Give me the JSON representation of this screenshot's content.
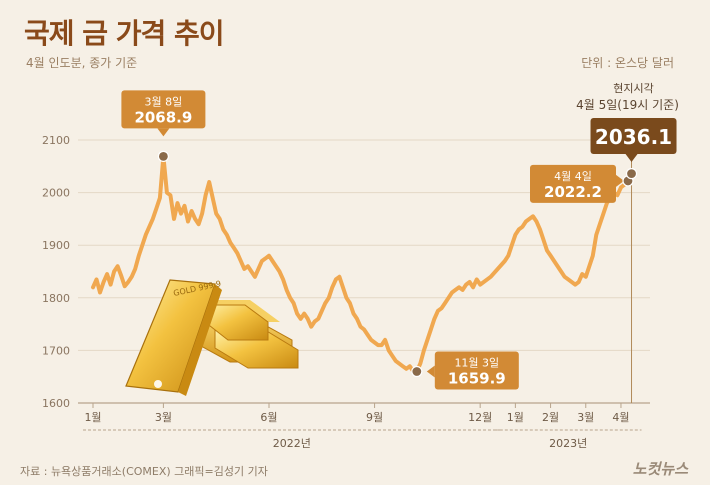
{
  "title": "국제 금 가격 추이",
  "subtitle": "4월 인도분, 종가 기준",
  "unit": "단위 : 온스당 달러",
  "source": "자료 : 뉴욕상품거래소(COMEX)   그래픽=김성기 기자",
  "logo": "노컷뉴스",
  "colors": {
    "line": "#f0a850",
    "callout": "#d28a35",
    "callout_dark": "#7a4a1c",
    "text_brown": "#8a4a1a"
  },
  "chart_data": {
    "type": "line",
    "title": "국제 금 가격 추이",
    "ylabel": "단위 : 온스당 달러",
    "ylim": [
      1600,
      2150
    ],
    "yticks": [
      1600,
      1700,
      1800,
      1900,
      2000,
      2100
    ],
    "x_range": [
      0,
      15.3
    ],
    "xticks": [
      {
        "x": 0,
        "label": "1월"
      },
      {
        "x": 2,
        "label": "3월"
      },
      {
        "x": 5,
        "label": "6월"
      },
      {
        "x": 8,
        "label": "9월"
      },
      {
        "x": 11,
        "label": "12월"
      },
      {
        "x": 12,
        "label": "1월"
      },
      {
        "x": 13,
        "label": "2월"
      },
      {
        "x": 14,
        "label": "3월"
      },
      {
        "x": 15,
        "label": "4월"
      }
    ],
    "year_groups": [
      {
        "label": "2022년",
        "from": 0,
        "to": 11.3
      },
      {
        "label": "2023년",
        "from": 11.7,
        "to": 15.3
      }
    ],
    "series": [
      {
        "name": "금 가격",
        "points": [
          [
            0,
            1820
          ],
          [
            0.1,
            1835
          ],
          [
            0.2,
            1810
          ],
          [
            0.3,
            1830
          ],
          [
            0.4,
            1845
          ],
          [
            0.5,
            1825
          ],
          [
            0.6,
            1850
          ],
          [
            0.7,
            1860
          ],
          [
            0.8,
            1842
          ],
          [
            0.9,
            1822
          ],
          [
            1.0,
            1830
          ],
          [
            1.1,
            1840
          ],
          [
            1.2,
            1855
          ],
          [
            1.3,
            1880
          ],
          [
            1.4,
            1900
          ],
          [
            1.5,
            1920
          ],
          [
            1.6,
            1935
          ],
          [
            1.7,
            1950
          ],
          [
            1.8,
            1970
          ],
          [
            1.9,
            1990
          ],
          [
            2.0,
            2068.9
          ],
          [
            2.1,
            2000
          ],
          [
            2.2,
            1995
          ],
          [
            2.3,
            1950
          ],
          [
            2.4,
            1980
          ],
          [
            2.5,
            1960
          ],
          [
            2.6,
            1975
          ],
          [
            2.7,
            1945
          ],
          [
            2.8,
            1965
          ],
          [
            2.9,
            1950
          ],
          [
            3.0,
            1940
          ],
          [
            3.1,
            1960
          ],
          [
            3.2,
            1995
          ],
          [
            3.3,
            2020
          ],
          [
            3.4,
            1990
          ],
          [
            3.5,
            1960
          ],
          [
            3.6,
            1950
          ],
          [
            3.7,
            1930
          ],
          [
            3.8,
            1920
          ],
          [
            3.9,
            1905
          ],
          [
            4.0,
            1895
          ],
          [
            4.1,
            1885
          ],
          [
            4.2,
            1870
          ],
          [
            4.3,
            1855
          ],
          [
            4.4,
            1860
          ],
          [
            4.5,
            1850
          ],
          [
            4.6,
            1840
          ],
          [
            4.7,
            1855
          ],
          [
            4.8,
            1870
          ],
          [
            4.9,
            1875
          ],
          [
            5.0,
            1880
          ],
          [
            5.1,
            1870
          ],
          [
            5.2,
            1860
          ],
          [
            5.3,
            1850
          ],
          [
            5.4,
            1835
          ],
          [
            5.5,
            1815
          ],
          [
            5.6,
            1800
          ],
          [
            5.7,
            1790
          ],
          [
            5.8,
            1770
          ],
          [
            5.9,
            1760
          ],
          [
            6.0,
            1770
          ],
          [
            6.1,
            1760
          ],
          [
            6.2,
            1745
          ],
          [
            6.3,
            1755
          ],
          [
            6.4,
            1760
          ],
          [
            6.5,
            1775
          ],
          [
            6.6,
            1790
          ],
          [
            6.7,
            1800
          ],
          [
            6.8,
            1820
          ],
          [
            6.9,
            1835
          ],
          [
            7.0,
            1840
          ],
          [
            7.1,
            1820
          ],
          [
            7.2,
            1800
          ],
          [
            7.3,
            1790
          ],
          [
            7.4,
            1770
          ],
          [
            7.5,
            1760
          ],
          [
            7.6,
            1745
          ],
          [
            7.7,
            1740
          ],
          [
            7.8,
            1730
          ],
          [
            7.9,
            1720
          ],
          [
            8.0,
            1715
          ],
          [
            8.1,
            1710
          ],
          [
            8.2,
            1710
          ],
          [
            8.3,
            1720
          ],
          [
            8.4,
            1700
          ],
          [
            8.5,
            1690
          ],
          [
            8.6,
            1680
          ],
          [
            8.7,
            1675
          ],
          [
            8.8,
            1670
          ],
          [
            8.9,
            1665
          ],
          [
            9.0,
            1670
          ],
          [
            9.1,
            1660
          ],
          [
            9.2,
            1659.9
          ],
          [
            9.3,
            1675
          ],
          [
            9.4,
            1700
          ],
          [
            9.5,
            1720
          ],
          [
            9.6,
            1740
          ],
          [
            9.7,
            1760
          ],
          [
            9.8,
            1775
          ],
          [
            9.9,
            1780
          ],
          [
            10.0,
            1790
          ],
          [
            10.1,
            1800
          ],
          [
            10.2,
            1810
          ],
          [
            10.3,
            1815
          ],
          [
            10.4,
            1820
          ],
          [
            10.5,
            1815
          ],
          [
            10.6,
            1825
          ],
          [
            10.7,
            1830
          ],
          [
            10.8,
            1820
          ],
          [
            10.9,
            1835
          ],
          [
            11.0,
            1825
          ],
          [
            11.3,
            1840
          ],
          [
            11.7,
            1870
          ],
          [
            11.8,
            1880
          ],
          [
            11.9,
            1900
          ],
          [
            12.0,
            1920
          ],
          [
            12.1,
            1930
          ],
          [
            12.2,
            1935
          ],
          [
            12.3,
            1945
          ],
          [
            12.4,
            1950
          ],
          [
            12.5,
            1955
          ],
          [
            12.6,
            1945
          ],
          [
            12.7,
            1930
          ],
          [
            12.8,
            1910
          ],
          [
            12.9,
            1890
          ],
          [
            13.0,
            1880
          ],
          [
            13.1,
            1870
          ],
          [
            13.2,
            1860
          ],
          [
            13.3,
            1850
          ],
          [
            13.4,
            1840
          ],
          [
            13.5,
            1835
          ],
          [
            13.6,
            1830
          ],
          [
            13.7,
            1825
          ],
          [
            13.8,
            1830
          ],
          [
            13.9,
            1845
          ],
          [
            14.0,
            1840
          ],
          [
            14.1,
            1860
          ],
          [
            14.2,
            1880
          ],
          [
            14.3,
            1920
          ],
          [
            14.4,
            1940
          ],
          [
            14.5,
            1960
          ],
          [
            14.6,
            1980
          ],
          [
            14.7,
            1990
          ],
          [
            14.8,
            2000
          ],
          [
            14.9,
            1995
          ],
          [
            15.0,
            2010
          ],
          [
            15.1,
            2015
          ],
          [
            15.2,
            2022.2
          ],
          [
            15.3,
            2036.1
          ]
        ]
      }
    ],
    "annotations": [
      {
        "x": 2.0,
        "y": 2068.9,
        "date": "3월 8일",
        "value": "2068.9",
        "style": "light"
      },
      {
        "x": 9.2,
        "y": 1659.9,
        "date": "11월 3일",
        "value": "1659.9",
        "style": "light"
      },
      {
        "x": 15.2,
        "y": 2022.2,
        "date": "4월 4일",
        "value": "2022.2",
        "style": "light"
      },
      {
        "x": 15.3,
        "y": 2036.1,
        "date_top": "현지시각",
        "date": "4월 5일(19시 기준)",
        "value": "2036.1",
        "style": "dark"
      }
    ],
    "image_label": "GOLD 999.9"
  }
}
